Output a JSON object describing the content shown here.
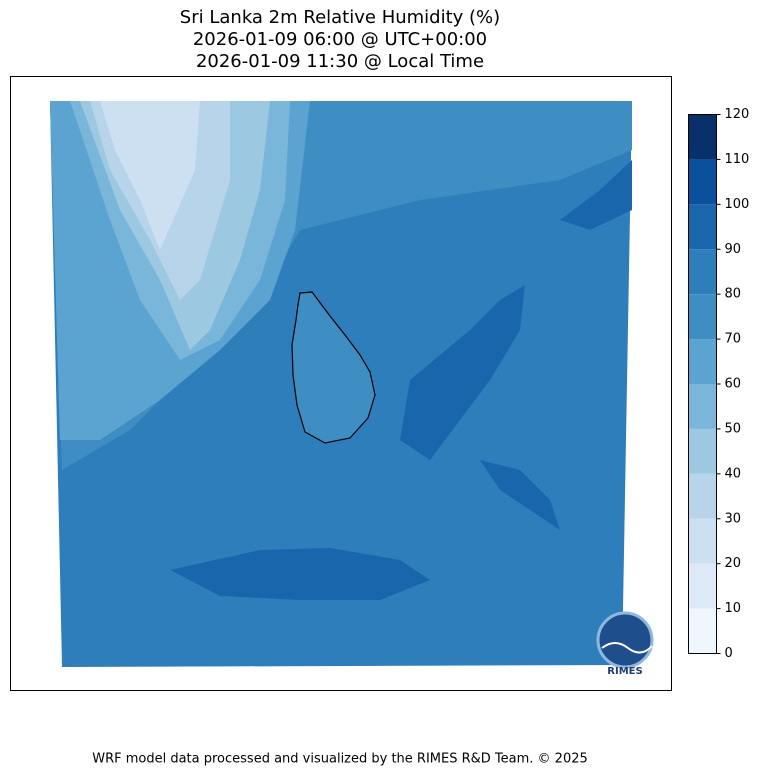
{
  "map": {
    "title": [
      "Sri Lanka 2m Relative Humidity (%)",
      "2026-01-09 06:00 @ UTC+00:00",
      "2026-01-09 11:30 @ Local Time"
    ],
    "colorbar": {
      "levels": [
        0,
        10,
        20,
        30,
        40,
        50,
        60,
        70,
        80,
        90,
        100,
        110,
        120
      ],
      "colors": [
        "#f0f6fd",
        "#dde9f7",
        "#cde0f2",
        "#b7d4ea",
        "#9cc9e1",
        "#7ab6d9",
        "#5ba3d0",
        "#3e8ec4",
        "#2e7ebc",
        "#1966ad",
        "#0b509c",
        "#08306b"
      ],
      "ticks": [
        0,
        10,
        20,
        30,
        40,
        50,
        60,
        70,
        80,
        90,
        100,
        110,
        120
      ]
    },
    "logo": "RIMES",
    "footer": "WRF model data processed and visualized by the RIMES R&D Team. © 2025"
  }
}
